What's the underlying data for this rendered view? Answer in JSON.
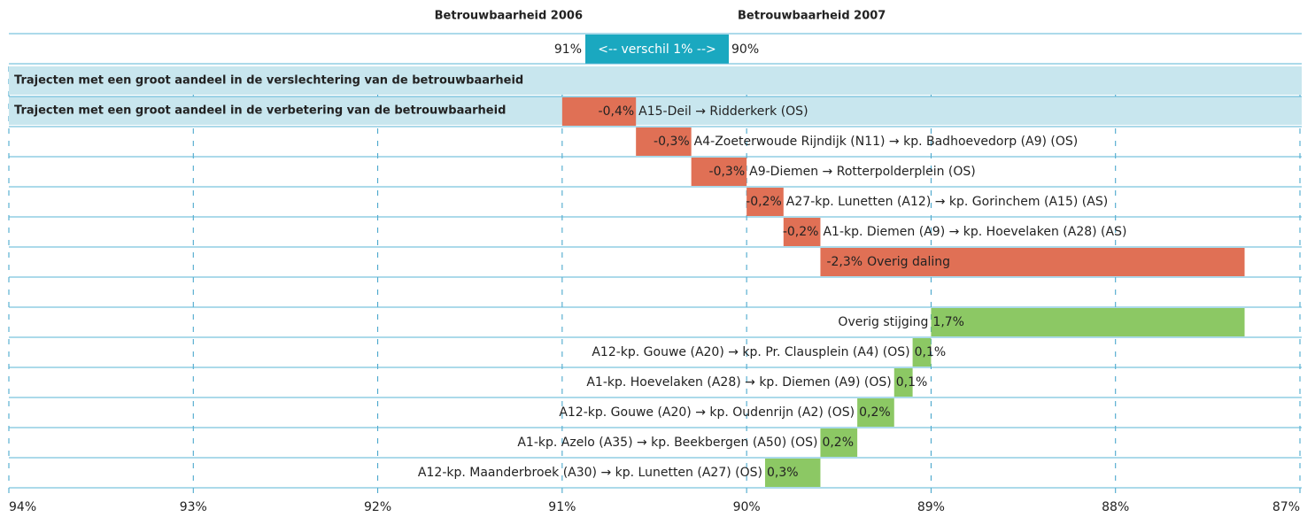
{
  "chart_data": {
    "type": "waterfall",
    "header": {
      "left_title": "Betrouwbaarheid 2006",
      "right_title": "Betrouwbaarheid 2007",
      "start": {
        "value": 91,
        "label": "91%"
      },
      "end": {
        "value": 90,
        "label": "90%"
      },
      "difference_label": "<-- verschil 1% -->"
    },
    "sections": [
      {
        "title": "Trajecten met een groot aandeel in de verslechtering van de  betrouwbaarheid",
        "color": "#e07055",
        "categories": [
          "A15-Deil → Ridderkerk (OS)",
          "A4-Zoeterwoude Rijndijk (N11) → kp. Badhoevedorp (A9) (OS)",
          "A9-Diemen → Rotterpolderplein (OS)",
          "A27-kp. Lunetten (A12) → kp. Gorinchem (A15) (AS)",
          "A1-kp. Diemen (A9) → kp. Hoevelaken (A28) (AS)",
          "Overig daling"
        ],
        "values": [
          -0.4,
          -0.3,
          -0.3,
          -0.2,
          -0.2,
          -2.3
        ],
        "value_labels": [
          "-0,4%",
          "-0,3%",
          "-0,3%",
          "-0,2%",
          "-0,2%",
          "-2,3%"
        ]
      },
      {
        "title": "Trajecten met een groot aandeel in de verbetering van de  betrouwbaarheid",
        "color": "#8cc864",
        "categories": [
          "Overig stijging",
          "A12-kp. Gouwe (A20) → kp. Pr. Clausplein (A4) (OS)",
          "A1-kp. Hoevelaken (A28) → kp. Diemen (A9) (OS)",
          "A12-kp. Gouwe (A20) → kp. Oudenrijn (A2) (OS)",
          "A1-kp. Azelo (A35) → kp. Beekbergen (A50) (OS)",
          "A12-kp. Maanderbroek (A30) → kp. Lunetten (A27) (OS)"
        ],
        "values": [
          1.7,
          0.1,
          0.1,
          0.2,
          0.2,
          0.3
        ],
        "value_labels": [
          "1,7%",
          "0,1%",
          "0,1%",
          "0,2%",
          "0,2%",
          "0,3%"
        ]
      }
    ],
    "xlim": [
      94,
      87
    ],
    "xticks": [
      {
        "value": 94,
        "label": "94%"
      },
      {
        "value": 93,
        "label": "93%"
      },
      {
        "value": 92,
        "label": "92%"
      },
      {
        "value": 91,
        "label": "91%"
      },
      {
        "value": 90,
        "label": "90%"
      },
      {
        "value": 89,
        "label": "89%"
      },
      {
        "value": 88,
        "label": "88%"
      },
      {
        "value": 87,
        "label": "87%"
      }
    ],
    "grid": true
  }
}
